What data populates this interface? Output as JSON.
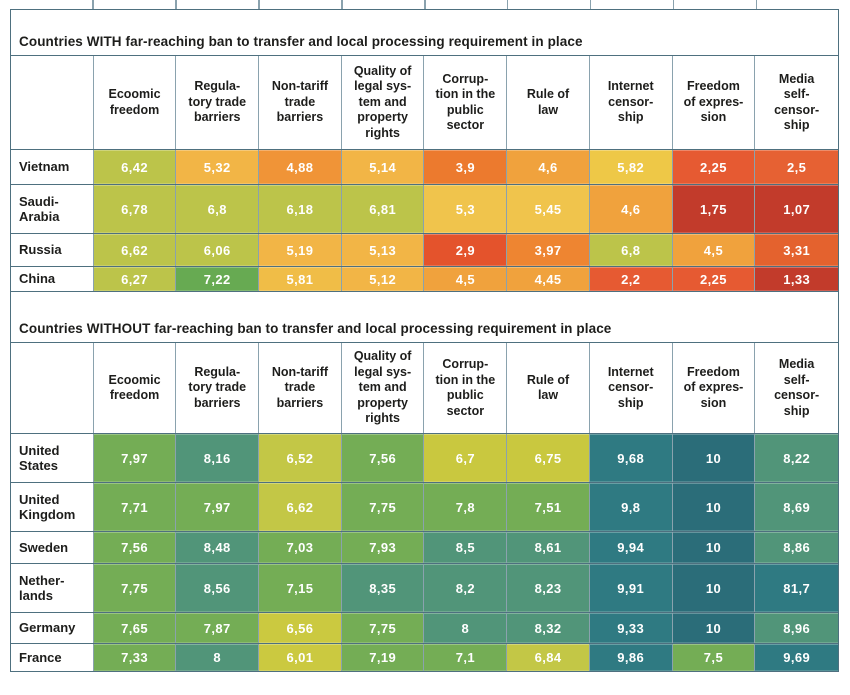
{
  "colors": {
    "border_outer": "#4e707f",
    "border_vertical": "#8aa2ae",
    "label_text": "#1d1d1b",
    "value_text": "#ffffff",
    "scale_low": "#c23b2b",
    "scale_mid": "#f0c44c",
    "scale_high": "#2b6d79"
  },
  "chart_data": [
    {
      "type": "heatmap",
      "title": "Countries WITH far-reaching ban to transfer and local processing requirement in place",
      "columns": [
        "Ecoomic\nfreedom",
        "Regula-\ntory trade\nbarriers",
        "Non-tariff\ntrade\nbarriers",
        "Quality of\nlegal sys-\ntem and\nproperty\nrights",
        "Corrup-\ntion in the\npublic\nsector",
        "Rule of\nlaw",
        "Internet\ncensor-\nship",
        "Freedom\nof expres-\nsion",
        "Media\nself-\ncensor-\nship"
      ],
      "rows": [
        "Vietnam",
        "Saudi-\nArabia",
        "Russia",
        "China"
      ],
      "values": [
        [
          "6,42",
          "5,32",
          "4,88",
          "5,14",
          "3,9",
          "4,6",
          "5,82",
          "2,25",
          "2,5"
        ],
        [
          "6,78",
          "6,8",
          "6,18",
          "6,81",
          "5,3",
          "5,45",
          "4,6",
          "1,75",
          "1,07"
        ],
        [
          "6,62",
          "6,06",
          "5,19",
          "5,13",
          "2,9",
          "3,97",
          "6,8",
          "4,5",
          "3,31"
        ],
        [
          "6,27",
          "7,22",
          "5,81",
          "5,12",
          "4,5",
          "4,45",
          "2,2",
          "2,25",
          "1,33"
        ]
      ],
      "cell_colors": [
        [
          "#bcc44a",
          "#f2b546",
          "#f09437",
          "#f2b546",
          "#ec7a2e",
          "#f0a23d",
          "#eec847",
          "#e65a32",
          "#e66133"
        ],
        [
          "#bcc44a",
          "#bcc44a",
          "#bcc44a",
          "#bcc44a",
          "#f0c44c",
          "#f0c44c",
          "#f0a23d",
          "#c23b2b",
          "#c23b2b"
        ],
        [
          "#bcc44a",
          "#bcc44a",
          "#f2b546",
          "#f2b546",
          "#e4532c",
          "#ee8531",
          "#bcc44a",
          "#f0a23d",
          "#e4622e"
        ],
        [
          "#bcc44a",
          "#67aa52",
          "#f0bd47",
          "#f2b546",
          "#f0a23d",
          "#f0a23d",
          "#e65a32",
          "#e65a32",
          "#c23b2b"
        ]
      ]
    },
    {
      "type": "heatmap",
      "title": "Countries WITHOUT far-reaching ban to transfer and local processing requirement in place",
      "columns": [
        "Ecoomic\nfreedom",
        "Regula-\ntory trade\nbarriers",
        "Non-tariff\ntrade\nbarriers",
        "Quality of\nlegal sys-\ntem and\nproperty\nrights",
        "Corrup-\ntion in the\npublic\nsector",
        "Rule of\nlaw",
        "Internet\ncensor-\nship",
        "Freedom\nof expres-\nsion",
        "Media\nself-\ncensor-\nship"
      ],
      "rows": [
        "United\nStates",
        "United\nKingdom",
        "Sweden",
        "Nether-\nlands",
        "Germany",
        "France"
      ],
      "values": [
        [
          "7,97",
          "8,16",
          "6,52",
          "7,56",
          "6,7",
          "6,75",
          "9,68",
          "10",
          "8,22"
        ],
        [
          "7,71",
          "7,97",
          "6,62",
          "7,75",
          "7,8",
          "7,51",
          "9,8",
          "10",
          "8,69"
        ],
        [
          "7,56",
          "8,48",
          "7,03",
          "7,93",
          "8,5",
          "8,61",
          "9,94",
          "10",
          "8,86"
        ],
        [
          "7,75",
          "8,56",
          "7,15",
          "8,35",
          "8,2",
          "8,23",
          "9,91",
          "10",
          "81,7"
        ],
        [
          "7,65",
          "7,87",
          "6,56",
          "7,75",
          "8",
          "8,32",
          "9,33",
          "10",
          "8,96"
        ],
        [
          "7,33",
          "8",
          "6,01",
          "7,19",
          "7,1",
          "6,84",
          "9,86",
          "7,5",
          "9,69"
        ]
      ],
      "cell_colors": [
        [
          "#74ad55",
          "#519579",
          "#c3c746",
          "#74ad55",
          "#c9c83f",
          "#c9c83f",
          "#2f7a82",
          "#2b6d79",
          "#519579"
        ],
        [
          "#74ad55",
          "#74ad55",
          "#c3c746",
          "#74ad55",
          "#74ad55",
          "#74ad55",
          "#2f7a82",
          "#2b6d79",
          "#519579"
        ],
        [
          "#74ad55",
          "#519579",
          "#74ad55",
          "#74ad55",
          "#519579",
          "#519579",
          "#2f7a82",
          "#2b6d79",
          "#519579"
        ],
        [
          "#74ad55",
          "#519579",
          "#74ad55",
          "#519579",
          "#519579",
          "#519579",
          "#2f7a82",
          "#2b6d79",
          "#2f7a82"
        ],
        [
          "#74ad55",
          "#74ad55",
          "#cbc940",
          "#74ad55",
          "#519579",
          "#519579",
          "#2f7a82",
          "#2b6d79",
          "#519579"
        ],
        [
          "#74ad55",
          "#519579",
          "#cbc940",
          "#74ad55",
          "#74ad55",
          "#c3c746",
          "#2f7a82",
          "#74ad55",
          "#2f7a82"
        ]
      ]
    }
  ]
}
